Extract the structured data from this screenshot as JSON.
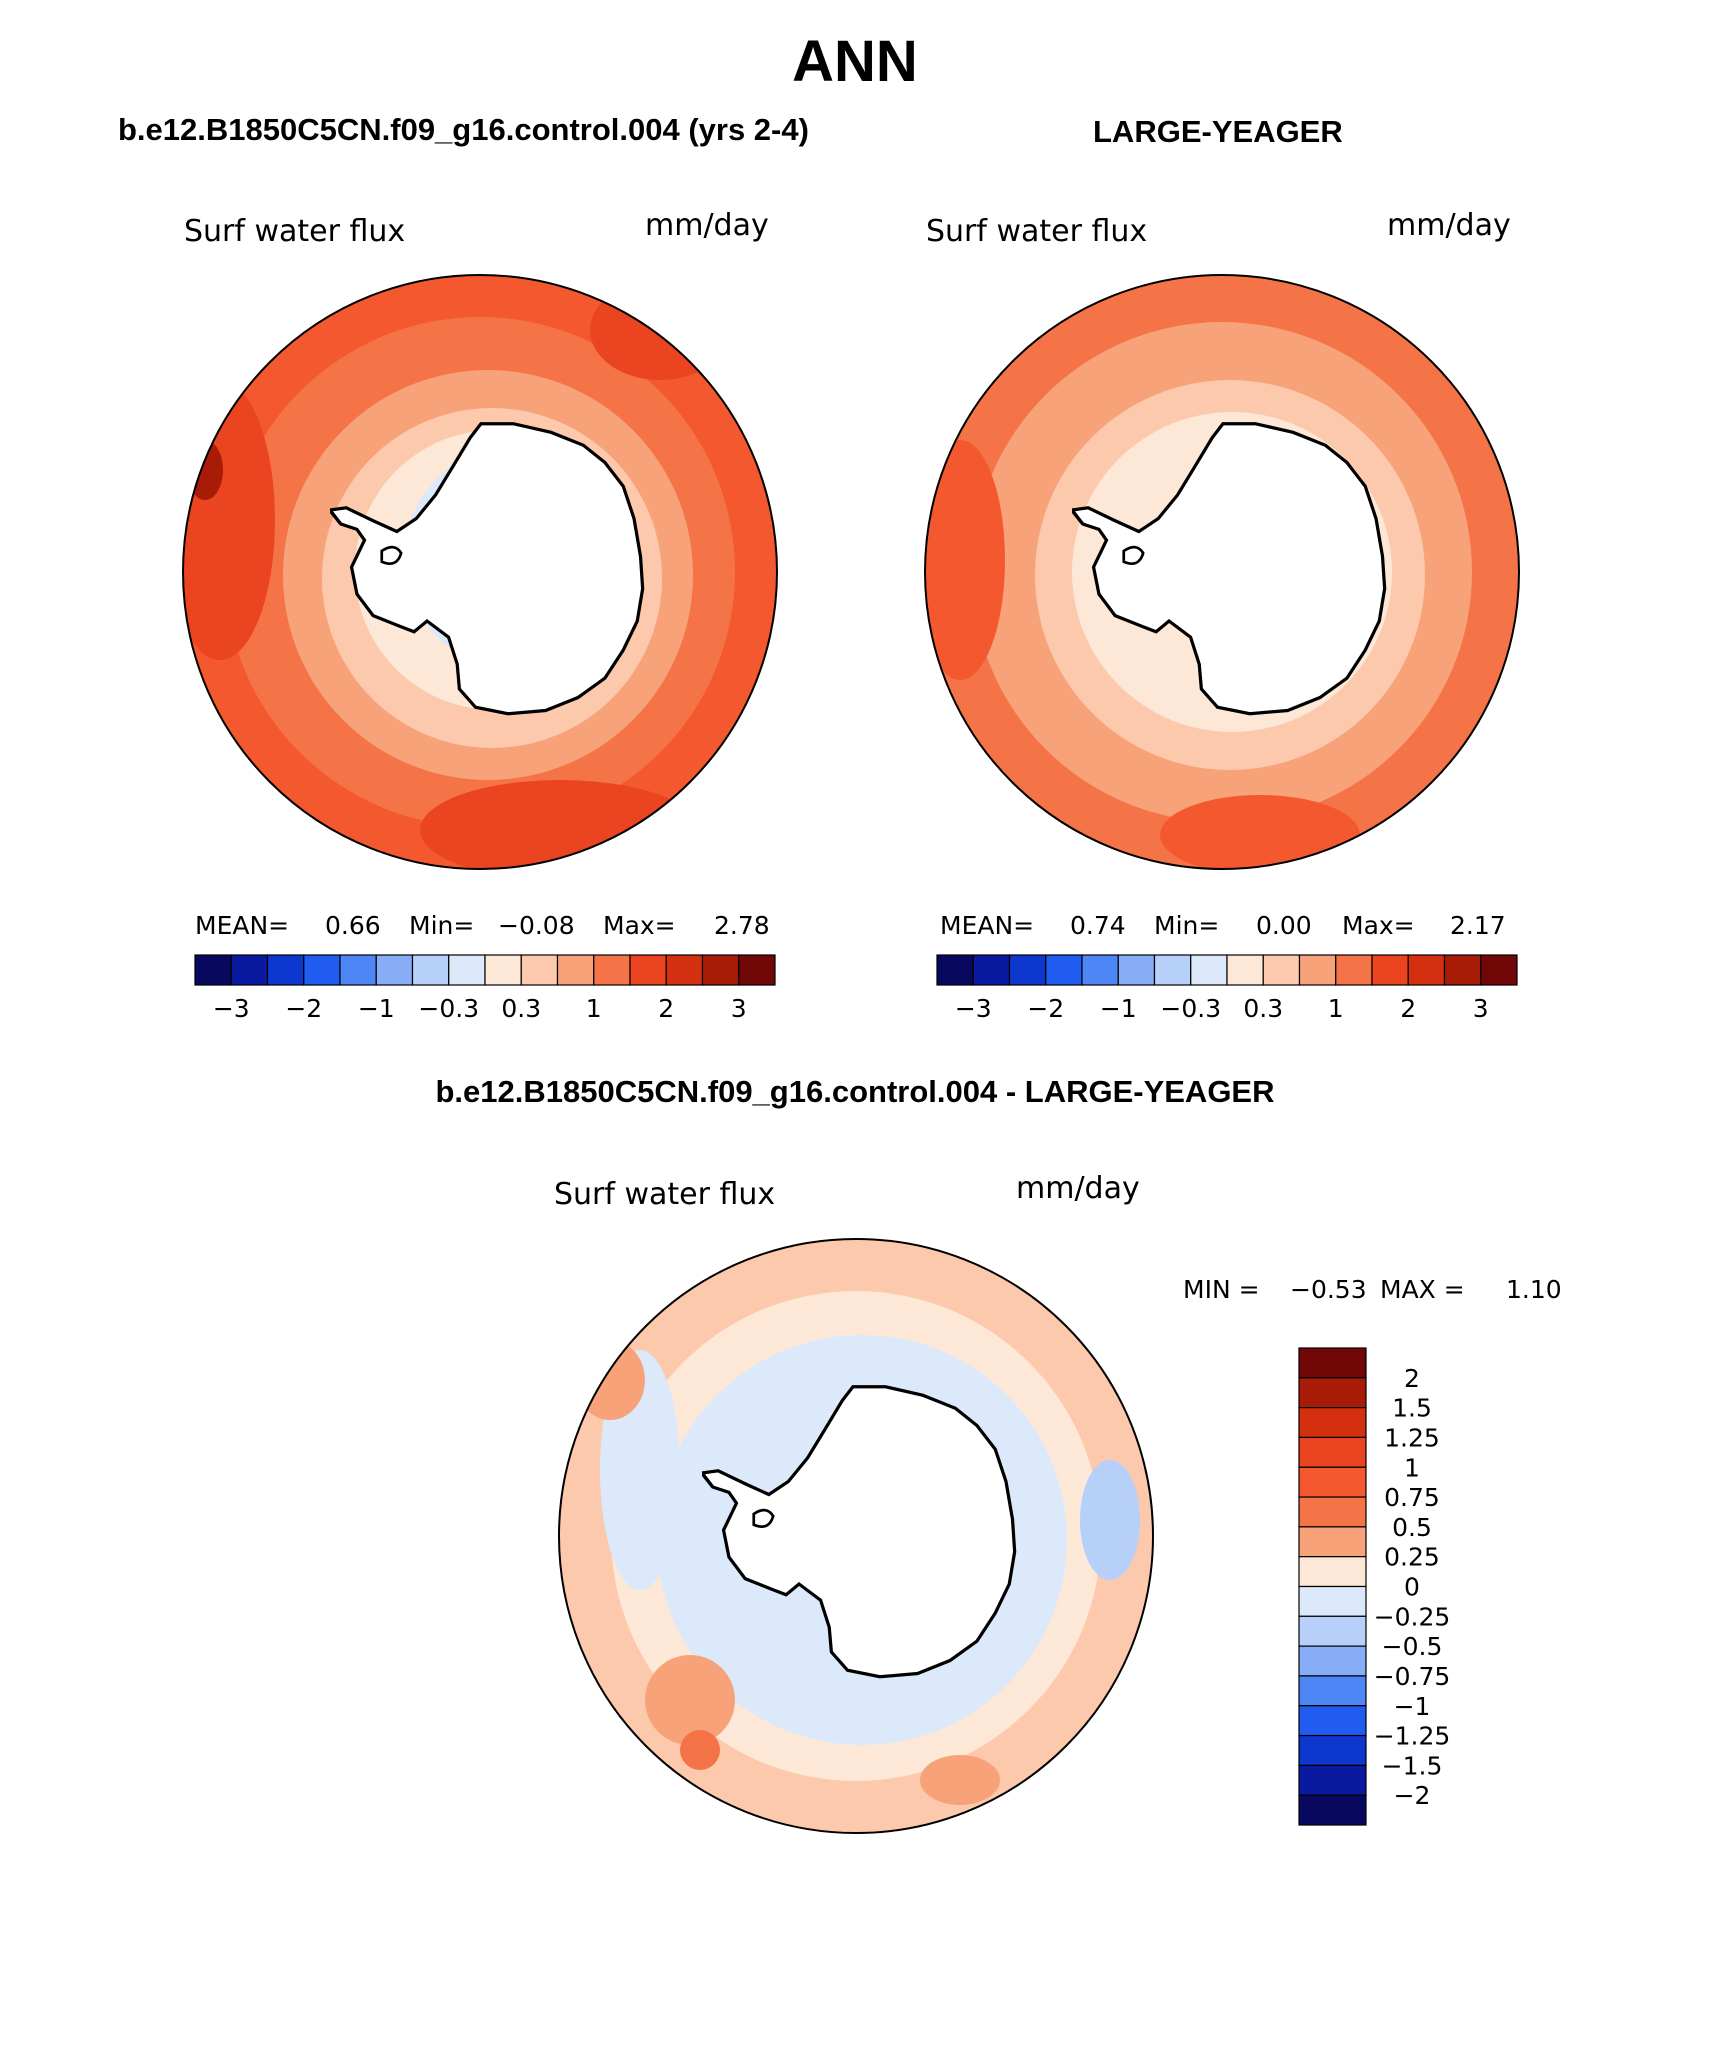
{
  "figure": {
    "season": "ANN",
    "case_a_title": "b.e12.B1850C5CN.f09_g16.control.004 (yrs 2-4)",
    "case_b_title": "LARGE-YEAGER",
    "diff_title": "b.e12.B1850C5CN.f09_g16.control.004 - LARGE-YEAGER"
  },
  "panels": [
    {
      "variable": "Surf water flux",
      "units": "mm/day",
      "stats": {
        "mean_label": "MEAN=",
        "mean": "0.66",
        "min_label": "Min=",
        "min": "−0.08",
        "max_label": "Max=",
        "max": "2.78"
      }
    },
    {
      "variable": "Surf water flux",
      "units": "mm/day",
      "stats": {
        "mean_label": "MEAN=",
        "mean": "0.74",
        "min_label": "Min=",
        "min": "0.00",
        "max_label": "Max=",
        "max": "2.17"
      }
    },
    {
      "variable": "Surf water flux",
      "units": "mm/day",
      "stats": {
        "min_label": "MIN =",
        "min": "−0.53",
        "max_label": "MAX =",
        "max": "1.10"
      }
    }
  ],
  "colorbar_main": {
    "tick_labels": [
      "−3",
      "−2",
      "−1",
      "−0.3",
      "0.3",
      "1",
      "2",
      "3"
    ],
    "colors": [
      "#08085e",
      "#0a1aa0",
      "#0d37cf",
      "#1f5cef",
      "#4f86f5",
      "#86adf5",
      "#b7d0fa",
      "#dbe9fb",
      "#fde8d7",
      "#fcc9ad",
      "#f8a27a",
      "#f47448",
      "#ea4420",
      "#d4300f",
      "#a81c07",
      "#720707"
    ]
  },
  "colorbar_diff": {
    "tick_labels": [
      "2",
      "1.5",
      "1.25",
      "1",
      "0.75",
      "0.5",
      "0.25",
      "0",
      "−0.25",
      "−0.5",
      "−0.75",
      "−1",
      "−1.25",
      "−1.5",
      "−2"
    ],
    "colors": [
      "#720707",
      "#a81c07",
      "#d4300f",
      "#ea4420",
      "#f4582e",
      "#f47448",
      "#f8a27a",
      "#fde8d7",
      "#dbe9fb",
      "#b7d0fa",
      "#86adf5",
      "#4f86f5",
      "#1f5cef",
      "#0d37cf",
      "#0a1aa0",
      "#08085e"
    ]
  },
  "chart_data": [
    {
      "type": "heatmap",
      "title": "Surf water flux",
      "units": "mm/day",
      "projection": "south polar stereographic",
      "levels": [
        -3,
        -2.5,
        -2,
        -1.5,
        -1,
        -0.6,
        -0.3,
        0,
        0.3,
        0.6,
        1,
        1.5,
        2,
        2.5,
        3
      ],
      "mean": 0.66,
      "min": -0.08,
      "max": 2.78
    },
    {
      "type": "heatmap",
      "title": "Surf water flux",
      "units": "mm/day",
      "projection": "south polar stereographic",
      "levels": [
        -3,
        -2.5,
        -2,
        -1.5,
        -1,
        -0.6,
        -0.3,
        0,
        0.3,
        0.6,
        1,
        1.5,
        2,
        2.5,
        3
      ],
      "mean": 0.74,
      "min": 0.0,
      "max": 2.17
    },
    {
      "type": "heatmap",
      "title": "Surf water flux",
      "units": "mm/day",
      "projection": "south polar stereographic",
      "levels": [
        -2,
        -1.5,
        -1.25,
        -1,
        -0.75,
        -0.5,
        -0.25,
        0,
        0.25,
        0.5,
        0.75,
        1,
        1.25,
        1.5,
        2
      ],
      "min": -0.53,
      "max": 1.1
    }
  ]
}
